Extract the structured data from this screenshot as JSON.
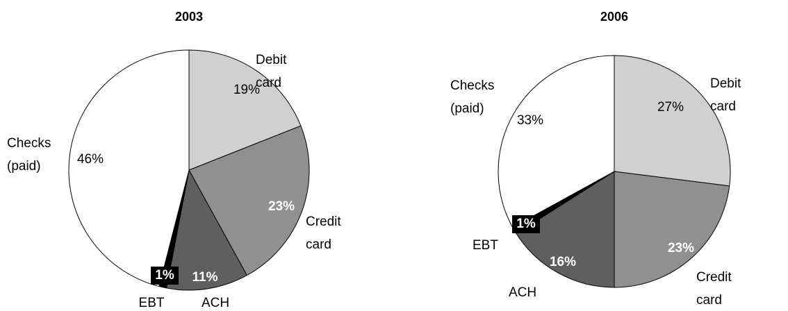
{
  "chart_data": [
    {
      "type": "pie",
      "title": "2003",
      "categories": [
        "Debit card",
        "Credit card",
        "ACH",
        "EBT",
        "Checks (paid)"
      ],
      "values": [
        19,
        23,
        11,
        1,
        46
      ],
      "value_labels": [
        "19%",
        "23%",
        "11%",
        "1%",
        "46%"
      ],
      "colors": [
        "#d0d0d0",
        "#909090",
        "#5f5f5f",
        "#000000",
        "#ffffff"
      ]
    },
    {
      "type": "pie",
      "title": "2006",
      "categories": [
        "Debit card",
        "Credit card",
        "ACH",
        "EBT",
        "Checks (paid)"
      ],
      "values": [
        27,
        23,
        16,
        1,
        33
      ],
      "value_labels": [
        "27%",
        "23%",
        "16%",
        "1%",
        "33%"
      ],
      "colors": [
        "#d0d0d0",
        "#909090",
        "#5f5f5f",
        "#000000",
        "#ffffff"
      ]
    }
  ]
}
